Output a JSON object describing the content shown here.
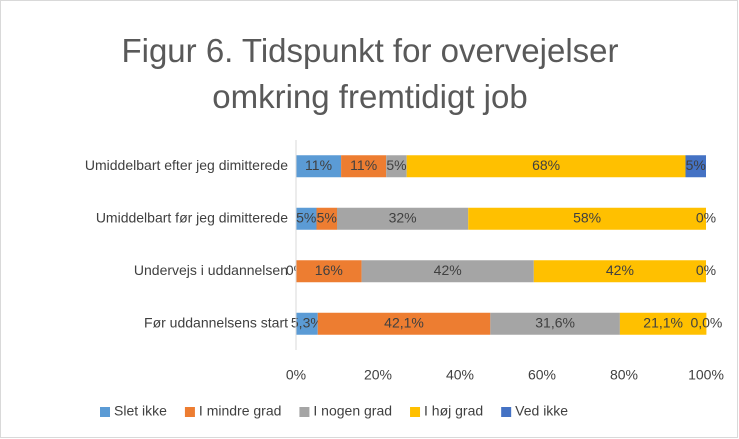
{
  "chart_data": {
    "type": "bar",
    "orientation": "horizontal",
    "stacked": true,
    "title": "Figur 6. Tidspunkt for overvejelser omkring fremtidigt job",
    "categories": [
      "Umiddelbart efter jeg dimitterede",
      "Umiddelbart før jeg dimitterede",
      "Undervejs i uddannelsen",
      "Før uddannelsens start"
    ],
    "series": [
      {
        "name": "Slet ikke",
        "color": "#5b9bd5",
        "values": [
          11,
          5,
          0,
          5.3
        ],
        "value_labels": [
          "11%",
          "5%",
          "0%",
          "5,3%"
        ]
      },
      {
        "name": "I mindre grad",
        "color": "#ed7d31",
        "values": [
          11,
          5,
          16,
          42.1
        ],
        "value_labels": [
          "11%",
          "5%",
          "16%",
          "42,1%"
        ]
      },
      {
        "name": "I nogen grad",
        "color": "#a5a5a5",
        "values": [
          5,
          32,
          42,
          31.6
        ],
        "value_labels": [
          "5%",
          "32%",
          "42%",
          "31,6%"
        ]
      },
      {
        "name": "I høj grad",
        "color": "#ffc000",
        "values": [
          68,
          58,
          42,
          21.1
        ],
        "value_labels": [
          "68%",
          "58%",
          "42%",
          "21,1%"
        ]
      },
      {
        "name": "Ved ikke",
        "color": "#4472c4",
        "values": [
          5,
          0,
          0,
          0.0
        ],
        "value_labels": [
          "5%",
          "0%",
          "0%",
          "0,0%"
        ]
      }
    ],
    "xlim": [
      0,
      100
    ],
    "xticks": [
      {
        "value": 0,
        "label": "0%"
      },
      {
        "value": 20,
        "label": "20%"
      },
      {
        "value": 40,
        "label": "40%"
      },
      {
        "value": 60,
        "label": "60%"
      },
      {
        "value": 80,
        "label": "80%"
      },
      {
        "value": 100,
        "label": "100%"
      }
    ],
    "legend": "bottom"
  }
}
